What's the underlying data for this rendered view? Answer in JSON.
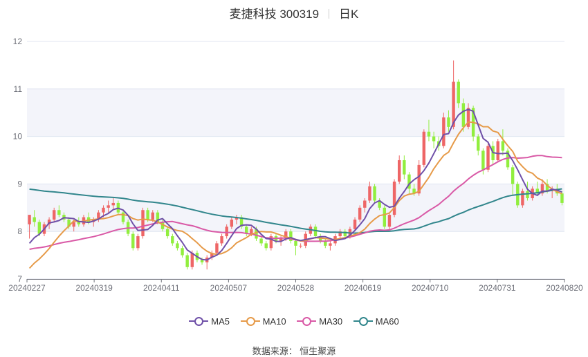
{
  "header": {
    "title": "麦捷科技 300319",
    "period": "日K"
  },
  "source_text": "数据来源： 恒生聚源",
  "colors": {
    "up": "#ee6666",
    "down": "#91ee3e",
    "ma5": "#6f50a8",
    "ma10": "#e69a48",
    "ma30": "#d959a6",
    "ma60": "#31868c",
    "band": "#f3f4fa",
    "grid": "#e0e6f1",
    "axis": "#6e7079"
  },
  "chart_data": {
    "type": "candlestick",
    "title": "麦捷科技 300319",
    "subtitle": "日K",
    "ylim": [
      7,
      12
    ],
    "y_ticks": [
      7,
      8,
      9,
      10,
      11,
      12
    ],
    "x_tick_labels": [
      "20240227",
      "20240319",
      "20240411",
      "20240507",
      "20240528",
      "20240619",
      "20240710",
      "20240731",
      "20240820"
    ],
    "grid": true,
    "legend_position": "bottom",
    "candles_ohlc": [
      [
        8.15,
        8.35,
        7.85,
        8.35
      ],
      [
        8.3,
        8.45,
        8.1,
        8.2
      ],
      [
        8.2,
        8.25,
        7.9,
        7.95
      ],
      [
        7.95,
        8.2,
        7.9,
        8.15
      ],
      [
        8.15,
        8.3,
        8.05,
        8.25
      ],
      [
        8.25,
        8.5,
        8.2,
        8.45
      ],
      [
        8.45,
        8.55,
        8.3,
        8.35
      ],
      [
        8.35,
        8.4,
        8.2,
        8.25
      ],
      [
        8.25,
        8.3,
        8.05,
        8.1
      ],
      [
        8.1,
        8.25,
        8.0,
        8.2
      ],
      [
        8.2,
        8.3,
        8.1,
        8.15
      ],
      [
        8.15,
        8.35,
        8.1,
        8.3
      ],
      [
        8.3,
        8.4,
        8.15,
        8.2
      ],
      [
        8.2,
        8.3,
        8.1,
        8.25
      ],
      [
        8.25,
        8.45,
        8.2,
        8.4
      ],
      [
        8.4,
        8.55,
        8.3,
        8.5
      ],
      [
        8.5,
        8.65,
        8.4,
        8.55
      ],
      [
        8.55,
        8.7,
        8.45,
        8.6
      ],
      [
        8.6,
        8.65,
        8.35,
        8.4
      ],
      [
        8.4,
        8.45,
        8.15,
        8.2
      ],
      [
        8.2,
        8.25,
        7.9,
        7.95
      ],
      [
        7.95,
        8.0,
        7.6,
        7.65
      ],
      [
        7.65,
        7.95,
        7.6,
        7.9
      ],
      [
        7.9,
        8.5,
        7.85,
        8.45
      ],
      [
        8.45,
        8.5,
        8.2,
        8.25
      ],
      [
        8.25,
        8.45,
        8.2,
        8.4
      ],
      [
        8.4,
        8.45,
        8.15,
        8.2
      ],
      [
        8.2,
        8.25,
        8.0,
        8.05
      ],
      [
        8.05,
        8.1,
        7.85,
        7.9
      ],
      [
        7.9,
        7.95,
        7.7,
        7.75
      ],
      [
        7.75,
        7.8,
        7.6,
        7.65
      ],
      [
        7.65,
        7.7,
        7.45,
        7.5
      ],
      [
        7.5,
        7.55,
        7.2,
        7.25
      ],
      [
        7.25,
        7.6,
        7.2,
        7.55
      ],
      [
        7.55,
        7.6,
        7.35,
        7.4
      ],
      [
        7.4,
        7.45,
        7.3,
        7.35
      ],
      [
        7.35,
        7.5,
        7.2,
        7.45
      ],
      [
        7.45,
        7.6,
        7.4,
        7.55
      ],
      [
        7.55,
        7.8,
        7.5,
        7.75
      ],
      [
        7.75,
        7.95,
        7.7,
        7.9
      ],
      [
        7.9,
        8.15,
        7.85,
        8.1
      ],
      [
        8.1,
        8.3,
        8.05,
        8.25
      ],
      [
        8.25,
        8.35,
        8.15,
        8.3
      ],
      [
        8.3,
        8.35,
        8.05,
        8.1
      ],
      [
        8.1,
        8.15,
        7.9,
        7.95
      ],
      [
        7.95,
        8.1,
        7.9,
        8.05
      ],
      [
        8.05,
        8.1,
        7.8,
        7.85
      ],
      [
        7.85,
        7.9,
        7.7,
        7.75
      ],
      [
        7.75,
        7.8,
        7.6,
        7.65
      ],
      [
        7.65,
        7.95,
        7.6,
        7.9
      ],
      [
        7.9,
        7.95,
        7.75,
        7.8
      ],
      [
        7.8,
        7.9,
        7.7,
        7.85
      ],
      [
        7.85,
        8.05,
        7.8,
        8.0
      ],
      [
        8.0,
        8.05,
        7.75,
        7.8
      ],
      [
        7.8,
        7.85,
        7.5,
        7.7
      ],
      [
        7.7,
        7.75,
        7.65,
        7.7
      ],
      [
        7.7,
        8.0,
        7.65,
        7.95
      ],
      [
        7.95,
        8.15,
        7.9,
        8.1
      ],
      [
        8.1,
        8.15,
        7.85,
        7.9
      ],
      [
        7.9,
        7.95,
        7.75,
        7.8
      ],
      [
        7.8,
        7.85,
        7.65,
        7.7
      ],
      [
        7.7,
        7.8,
        7.6,
        7.75
      ],
      [
        7.75,
        7.95,
        7.7,
        7.9
      ],
      [
        7.9,
        8.05,
        7.85,
        8.0
      ],
      [
        8.0,
        8.05,
        7.85,
        7.9
      ],
      [
        7.9,
        8.1,
        7.85,
        8.05
      ],
      [
        8.05,
        8.3,
        8.0,
        8.25
      ],
      [
        8.25,
        8.55,
        8.2,
        8.5
      ],
      [
        8.5,
        8.7,
        8.4,
        8.65
      ],
      [
        8.65,
        9.05,
        8.6,
        8.95
      ],
      [
        8.95,
        9.0,
        8.6,
        8.65
      ],
      [
        8.65,
        8.7,
        8.45,
        8.5
      ],
      [
        8.5,
        8.55,
        8.05,
        8.1
      ],
      [
        8.1,
        8.4,
        8.05,
        8.35
      ],
      [
        8.35,
        9.1,
        8.3,
        9.05
      ],
      [
        9.05,
        9.6,
        9.0,
        9.5
      ],
      [
        9.5,
        9.6,
        9.1,
        9.2
      ],
      [
        9.2,
        9.25,
        8.8,
        8.9
      ],
      [
        8.9,
        9.0,
        8.75,
        8.8
      ],
      [
        8.8,
        9.5,
        8.75,
        9.4
      ],
      [
        9.4,
        10.15,
        9.35,
        10.1
      ],
      [
        10.1,
        10.35,
        9.9,
        10.0
      ],
      [
        10.0,
        10.1,
        9.75,
        9.9
      ],
      [
        9.9,
        10.0,
        9.7,
        9.8
      ],
      [
        9.8,
        10.5,
        9.75,
        10.4
      ],
      [
        10.4,
        10.55,
        10.1,
        10.2
      ],
      [
        10.2,
        11.6,
        10.15,
        11.15
      ],
      [
        11.15,
        11.2,
        10.6,
        10.7
      ],
      [
        10.7,
        10.8,
        10.1,
        10.2
      ],
      [
        10.2,
        10.7,
        10.15,
        10.6
      ],
      [
        10.6,
        10.65,
        9.9,
        10.0
      ],
      [
        10.0,
        10.05,
        9.6,
        9.7
      ],
      [
        9.7,
        9.75,
        9.2,
        9.3
      ],
      [
        9.3,
        9.85,
        9.25,
        9.8
      ],
      [
        9.8,
        9.9,
        9.4,
        9.5
      ],
      [
        9.5,
        9.95,
        9.45,
        9.9
      ],
      [
        9.9,
        10.15,
        9.6,
        9.7
      ],
      [
        9.7,
        9.75,
        9.3,
        9.35
      ],
      [
        9.35,
        9.4,
        8.75,
        9.0
      ],
      [
        9.0,
        9.05,
        8.5,
        8.55
      ],
      [
        8.55,
        8.9,
        8.5,
        8.85
      ],
      [
        8.85,
        9.05,
        8.65,
        8.7
      ],
      [
        8.7,
        8.95,
        8.65,
        8.9
      ],
      [
        8.9,
        9.05,
        8.75,
        8.8
      ],
      [
        8.8,
        9.1,
        8.75,
        9.0
      ],
      [
        9.0,
        9.1,
        8.8,
        8.85
      ],
      [
        8.85,
        8.95,
        8.7,
        8.9
      ],
      [
        8.9,
        9.0,
        8.75,
        8.8
      ],
      [
        8.8,
        8.85,
        8.55,
        8.6
      ]
    ]
  },
  "legend": [
    {
      "label": "MA5",
      "key": "ma5"
    },
    {
      "label": "MA10",
      "key": "ma10"
    },
    {
      "label": "MA30",
      "key": "ma30"
    },
    {
      "label": "MA60",
      "key": "ma60"
    }
  ]
}
